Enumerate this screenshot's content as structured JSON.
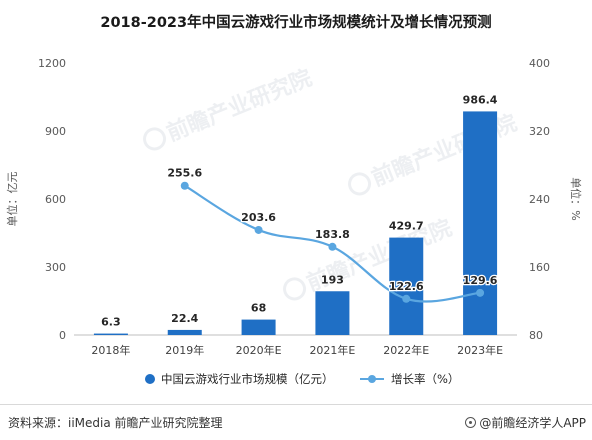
{
  "chart_data": {
    "type": "bar",
    "title": "2018-2023年中国云游戏行业市场规模统计及增长情况预测",
    "categories": [
      "2018年",
      "2019年",
      "2020年E",
      "2021年E",
      "2022年E",
      "2023年E"
    ],
    "series": [
      {
        "name": "中国云游戏行业市场规模（亿元）",
        "type": "bar",
        "axis": "left",
        "values": [
          6.3,
          22.4,
          68,
          193,
          429.7,
          986.4
        ],
        "labels": [
          "6.3",
          "22.4",
          "68",
          "193",
          "429.7",
          "986.4"
        ],
        "color": "#1f6fc5"
      },
      {
        "name": "增长率（%）",
        "type": "line",
        "axis": "right",
        "values": [
          null,
          255.6,
          203.6,
          183.8,
          122.6,
          129.6
        ],
        "labels": [
          "",
          "255.6",
          "203.6",
          "183.8",
          "122.6",
          "129.6"
        ],
        "color": "#5aa6e0"
      }
    ],
    "yleft": {
      "label": "单位：亿元",
      "ylim": [
        0,
        1200
      ],
      "ticks": [
        0,
        300,
        600,
        900,
        1200
      ],
      "tick_labels": [
        "0",
        "300",
        "600",
        "900",
        "1200"
      ]
    },
    "yright": {
      "label": "单位：%",
      "ylim": [
        80,
        400
      ],
      "ticks": [
        80,
        160,
        240,
        320,
        400
      ],
      "tick_labels": [
        "80",
        "160",
        "240",
        "320",
        "400"
      ]
    },
    "grid": false,
    "legend": "bottom",
    "watermark": "前瞻产业研究院"
  },
  "footer": {
    "source": "资料来源：iiMedia 前瞻产业研究院整理",
    "brand": "@前瞻经济学人APP"
  }
}
